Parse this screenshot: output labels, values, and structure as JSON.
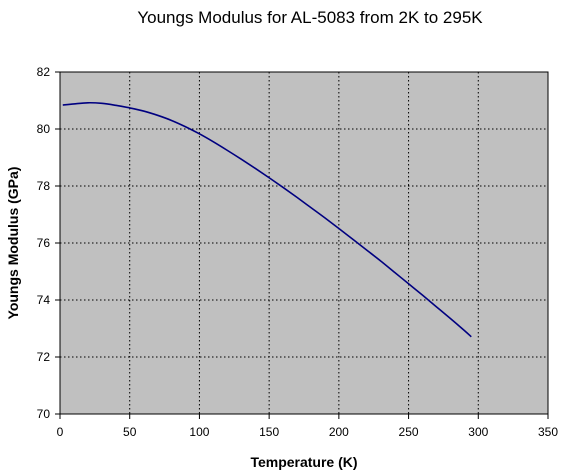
{
  "chart_data": {
    "type": "line",
    "title": "Youngs Modulus for AL-5083 from 2K to 295K",
    "xlabel": "Temperature (K)",
    "ylabel": "Youngs Modulus (GPa)",
    "xlim": [
      0,
      350
    ],
    "ylim": [
      70,
      82
    ],
    "xticks": [
      0,
      50,
      100,
      150,
      200,
      250,
      300,
      350
    ],
    "yticks": [
      70,
      72,
      74,
      76,
      78,
      80,
      82
    ],
    "xtick_labels": [
      "0",
      "50",
      "100",
      "150",
      "200",
      "250",
      "300",
      "350"
    ],
    "ytick_labels": [
      "70",
      "72",
      "74",
      "76",
      "78",
      "80",
      "82"
    ],
    "grid": true,
    "legend": "none",
    "series": [
      {
        "x": [
          2,
          10,
          20,
          30,
          40,
          50,
          60,
          70,
          80,
          90,
          100,
          110,
          120,
          130,
          140,
          150,
          160,
          170,
          180,
          190,
          200,
          210,
          220,
          230,
          240,
          250,
          260,
          270,
          280,
          290,
          295
        ],
        "values": [
          80.84,
          80.88,
          80.92,
          80.9,
          80.83,
          80.74,
          80.63,
          80.48,
          80.3,
          80.08,
          79.83,
          79.55,
          79.25,
          78.94,
          78.62,
          78.29,
          77.95,
          77.6,
          77.24,
          76.88,
          76.51,
          76.13,
          75.75,
          75.37,
          74.97,
          74.57,
          74.17,
          73.76,
          73.35,
          72.93,
          72.71
        ]
      }
    ],
    "colors": {
      "line": "#000080",
      "plot_background": "#c0c0c0",
      "grid": "#000000"
    }
  }
}
